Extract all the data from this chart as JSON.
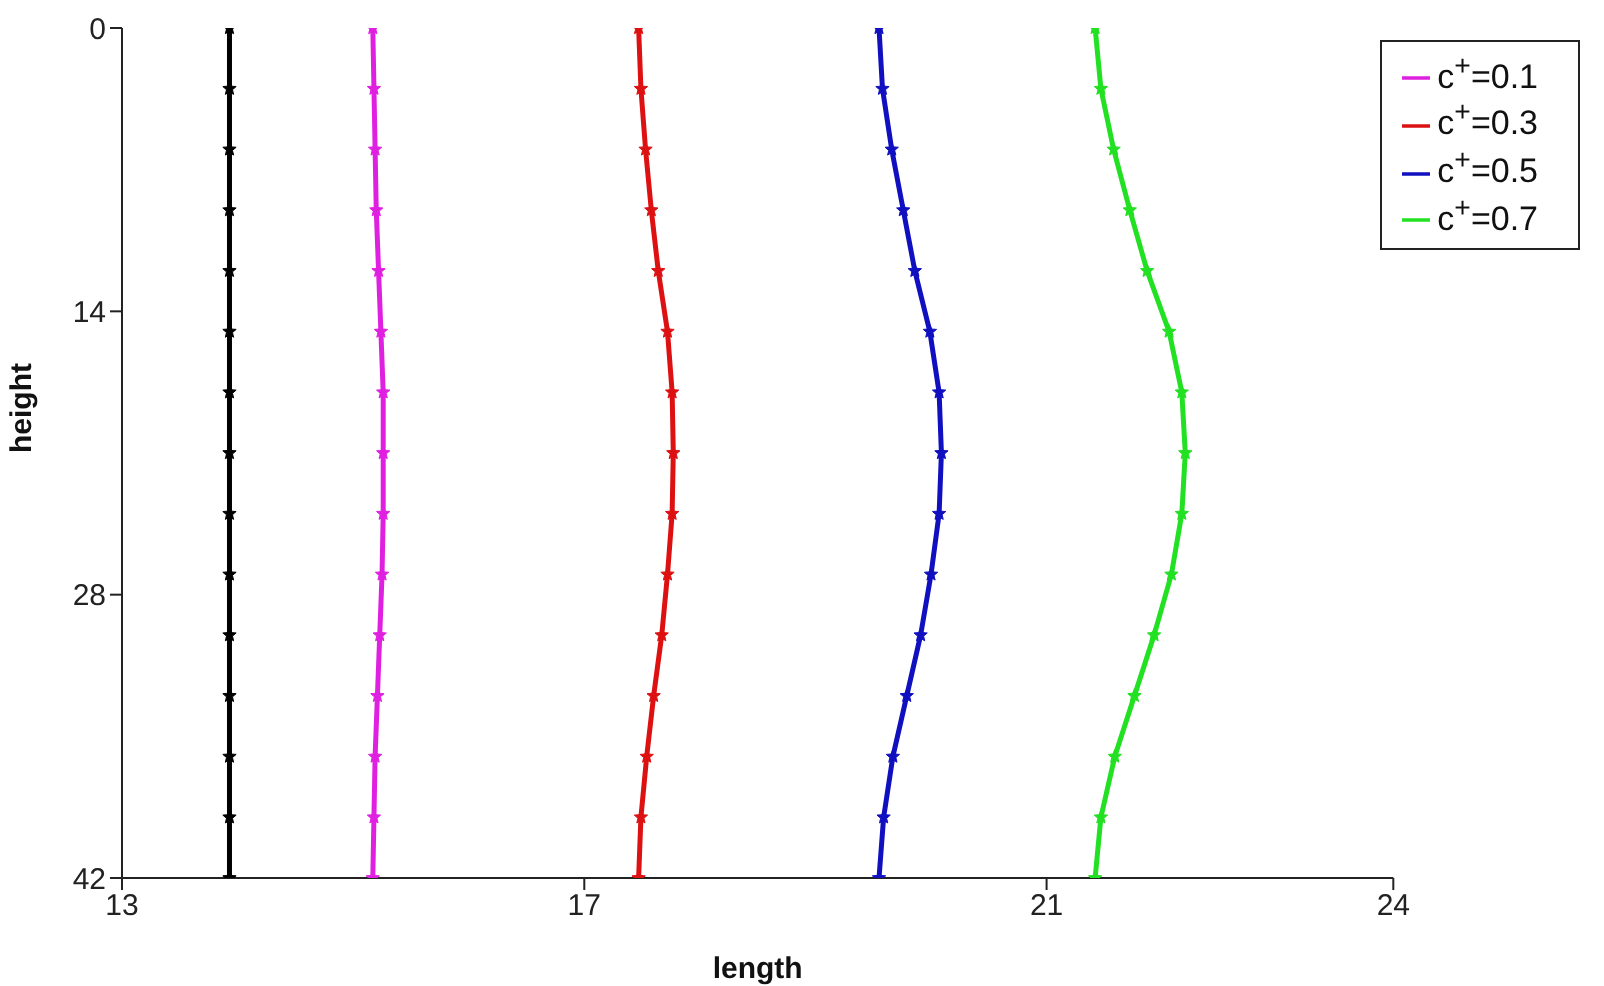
{
  "chart_data": {
    "type": "line",
    "xlabel": "length",
    "ylabel": "height",
    "xlim": [
      13,
      24
    ],
    "xticks": [
      13,
      17,
      21,
      24
    ],
    "ylim": [
      42,
      0
    ],
    "yticks": [
      0,
      14,
      28,
      42
    ],
    "legend": "top right",
    "marker": "star",
    "line_style": "solid",
    "series": [
      {
        "color": "#000000",
        "x": [
          13.93,
          13.93,
          13.93,
          13.93,
          13.93,
          13.93,
          13.93,
          13.93,
          13.93,
          13.93,
          13.93,
          13.93,
          13.93,
          13.93,
          13.93
        ],
        "values": [
          0,
          3,
          6,
          9,
          12,
          15,
          18,
          21,
          24,
          27,
          30,
          33,
          36,
          39,
          42
        ]
      },
      {
        "name": "c$^{+}$=0.1",
        "color": "#e020e0",
        "x": [
          15.17,
          15.18,
          15.19,
          15.2,
          15.22,
          15.24,
          15.26,
          15.26,
          15.26,
          15.25,
          15.23,
          15.21,
          15.19,
          15.18,
          15.17
        ],
        "values": [
          0,
          3,
          6,
          9,
          12,
          15,
          18,
          21,
          24,
          27,
          30,
          33,
          36,
          39,
          42
        ]
      },
      {
        "name": "c$^{+}$=0.3",
        "color": "#dd1111",
        "x": [
          17.47,
          17.49,
          17.53,
          17.58,
          17.64,
          17.72,
          17.76,
          17.77,
          17.76,
          17.72,
          17.67,
          17.6,
          17.54,
          17.49,
          17.47
        ],
        "values": [
          0,
          3,
          6,
          9,
          12,
          15,
          18,
          21,
          24,
          27,
          30,
          33,
          36,
          39,
          42
        ]
      },
      {
        "name": "c$^{+}$=0.5",
        "color": "#1010c0",
        "x": [
          19.55,
          19.58,
          19.66,
          19.76,
          19.86,
          19.99,
          20.07,
          20.09,
          20.07,
          20,
          19.91,
          19.79,
          19.67,
          19.59,
          19.55
        ],
        "values": [
          0,
          3,
          6,
          9,
          12,
          15,
          18,
          21,
          24,
          27,
          30,
          33,
          36,
          39,
          42
        ]
      },
      {
        "name": "c$^{+}$=0.7",
        "color": "#22e022",
        "x": [
          21.42,
          21.47,
          21.58,
          21.72,
          21.87,
          22.06,
          22.17,
          22.2,
          22.17,
          22.08,
          21.93,
          21.76,
          21.59,
          21.47,
          21.42
        ],
        "values": [
          0,
          3,
          6,
          9,
          12,
          15,
          18,
          21,
          24,
          27,
          30,
          33,
          36,
          39,
          42
        ]
      }
    ]
  }
}
